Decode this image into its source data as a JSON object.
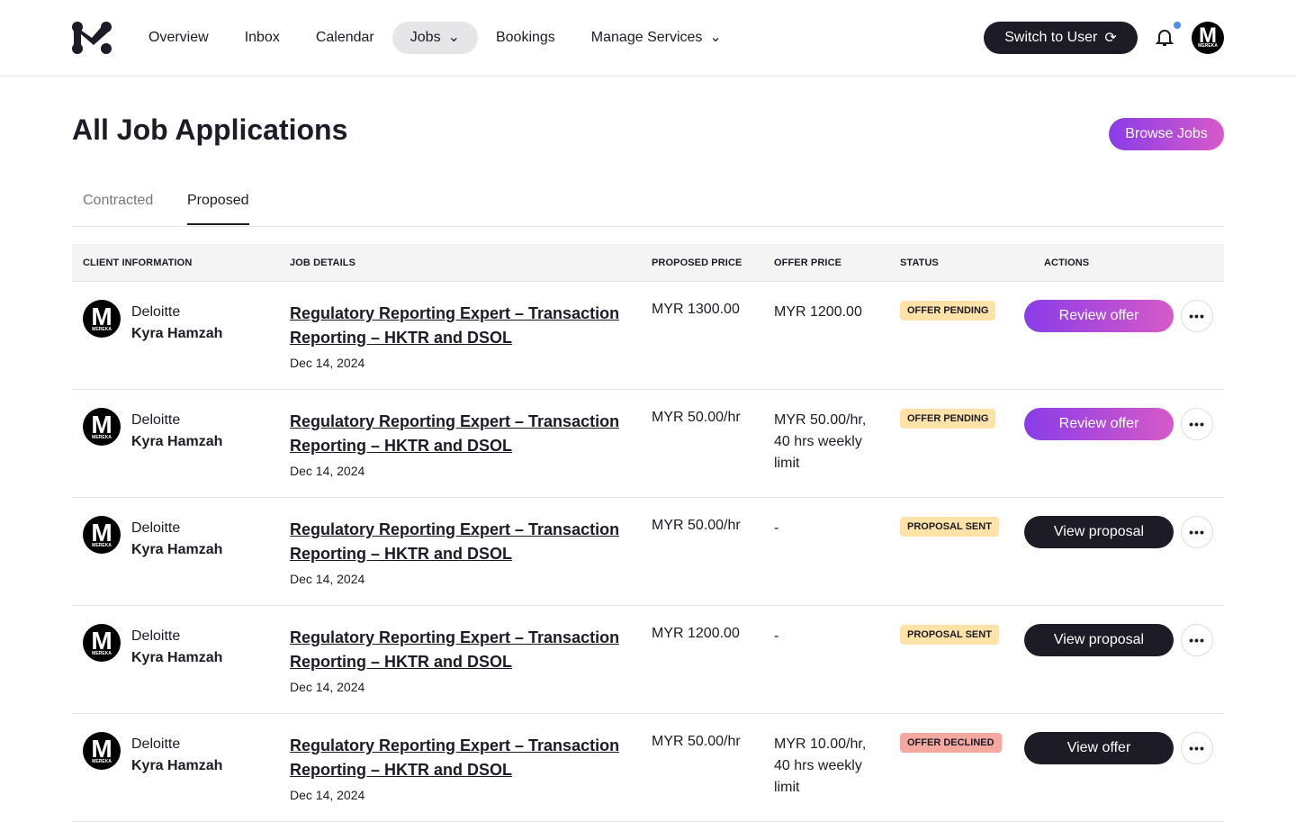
{
  "nav": {
    "items": [
      "Overview",
      "Inbox",
      "Calendar",
      "Jobs",
      "Bookings",
      "Manage Services"
    ],
    "switch_label": "Switch to User",
    "avatar_text": "MEREKA"
  },
  "page": {
    "title": "All Job Applications",
    "browse_label": "Browse Jobs",
    "tabs": [
      "Contracted",
      "Proposed"
    ]
  },
  "table": {
    "headers": [
      "CLIENT INFORMATION",
      "JOB DETAILS",
      "PROPOSED PRICE",
      "OFFER PRICE",
      "STATUS",
      "ACTIONS"
    ],
    "rows": [
      {
        "company": "Deloitte",
        "person": "Kyra Hamzah",
        "title": "Regulatory Reporting Expert – Transaction Reporting – HKTR and DSOL",
        "date": "Dec 14, 2024",
        "proposed": "MYR 1300.00",
        "offer": "MYR 1200.00",
        "status": "OFFER PENDING",
        "action": "Review offer"
      },
      {
        "company": "Deloitte",
        "person": "Kyra Hamzah",
        "title": "Regulatory Reporting Expert – Transaction Reporting – HKTR and DSOL",
        "date": "Dec 14, 2024",
        "proposed": "MYR 50.00/hr",
        "offer": "MYR 50.00/hr, 40 hrs weekly limit",
        "status": "OFFER PENDING",
        "action": "Review offer"
      },
      {
        "company": "Deloitte",
        "person": "Kyra Hamzah",
        "title": "Regulatory Reporting Expert – Transaction Reporting – HKTR and DSOL",
        "date": "Dec 14, 2024",
        "proposed": "MYR 50.00/hr",
        "offer": "-",
        "status": "PROPOSAL SENT",
        "action": "View proposal"
      },
      {
        "company": "Deloitte",
        "person": "Kyra Hamzah",
        "title": "Regulatory Reporting Expert – Transaction Reporting – HKTR and DSOL",
        "date": "Dec 14, 2024",
        "proposed": "MYR 1200.00",
        "offer": "-",
        "status": "PROPOSAL SENT",
        "action": "View proposal"
      },
      {
        "company": "Deloitte",
        "person": "Kyra Hamzah",
        "title": "Regulatory Reporting Expert – Transaction Reporting – HKTR and DSOL",
        "date": "Dec 14, 2024",
        "proposed": "MYR 50.00/hr",
        "offer": "MYR 10.00/hr, 40 hrs weekly limit",
        "status": "OFFER DECLINED",
        "action": "View offer"
      }
    ]
  }
}
